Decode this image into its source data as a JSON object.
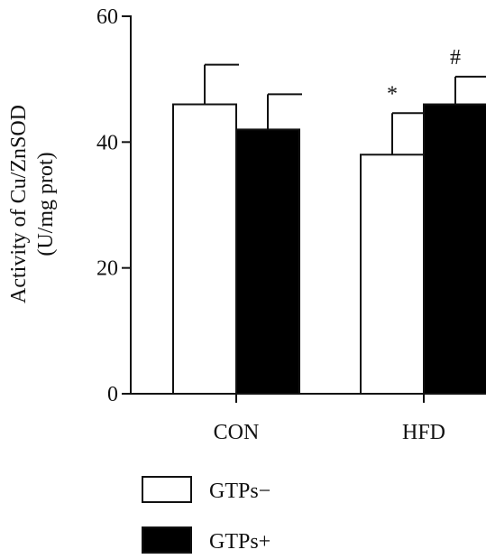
{
  "chart_data": {
    "type": "bar",
    "ylabel_line1": "Activity of Cu/ZnSOD",
    "ylabel_line2": "(U/mg prot)",
    "ylim": [
      0,
      60
    ],
    "yticks": [
      "0",
      "20",
      "40",
      "60"
    ],
    "categories": [
      "CON",
      "HFD"
    ],
    "series": [
      {
        "name": "GTPs−",
        "values": [
          46,
          38
        ],
        "errors": [
          6.3,
          6.6
        ],
        "fill": "#ffffff"
      },
      {
        "name": "GTPs+",
        "values": [
          42,
          46
        ],
        "errors": [
          5.6,
          4.4
        ],
        "fill": "#000000"
      }
    ],
    "annotations": [
      {
        "category": "HFD",
        "series": 0,
        "text": "*"
      },
      {
        "category": "HFD",
        "series": 1,
        "text": "#"
      }
    ],
    "legend_position": "bottom-left",
    "grid": false
  }
}
